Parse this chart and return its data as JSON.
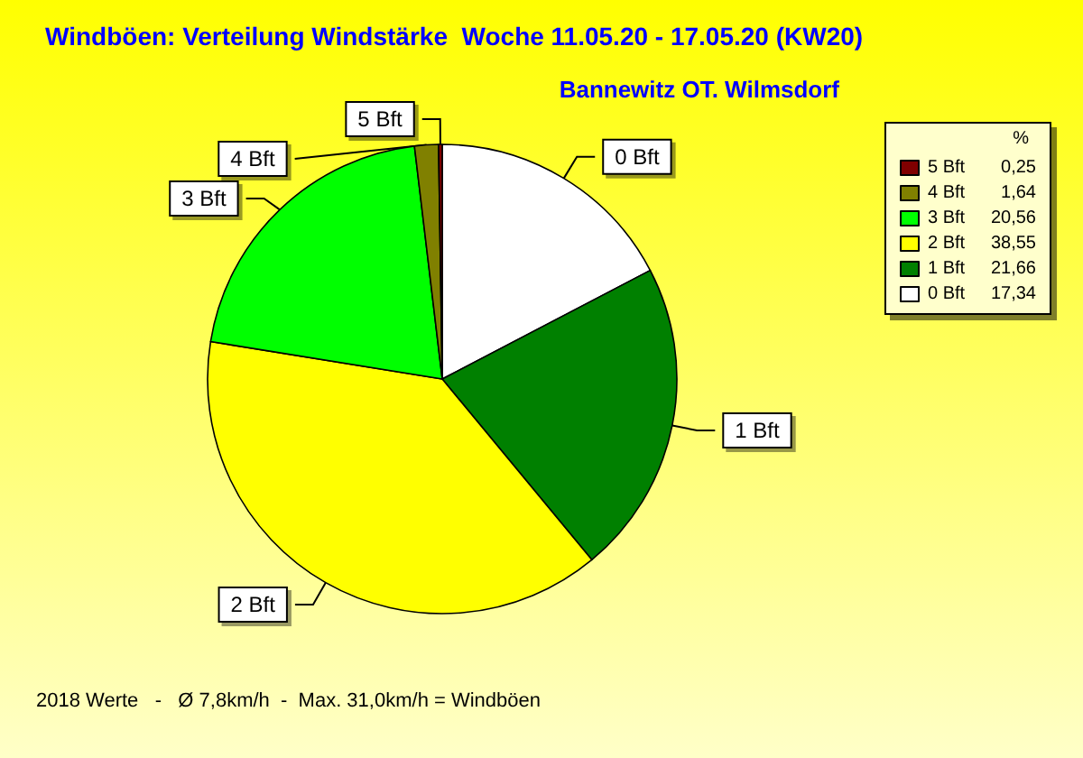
{
  "chart_data": {
    "type": "pie",
    "title": "Windböen: Verteilung Windstärke  Woche 11.05.20 - 17.05.20 (KW20)",
    "subtitle": "Bannewitz OT. Wilmsdorf",
    "legend_title": "%",
    "categories": [
      "0 Bft",
      "1 Bft",
      "2 Bft",
      "3 Bft",
      "4 Bft",
      "5 Bft"
    ],
    "values": [
      17.34,
      21.66,
      38.55,
      20.56,
      1.64,
      0.25
    ],
    "value_labels": [
      "17,34",
      "21,66",
      "38,55",
      "20,56",
      "1,64",
      "0,25"
    ],
    "colors": [
      "#ffffff",
      "#008000",
      "#ffff00",
      "#00ff00",
      "#808000",
      "#800000"
    ],
    "legend": "top right",
    "annotations": [
      "2018 Werte   -   Ø 7,8km/h  -  Max. 31,0km/h = Windböen"
    ]
  }
}
